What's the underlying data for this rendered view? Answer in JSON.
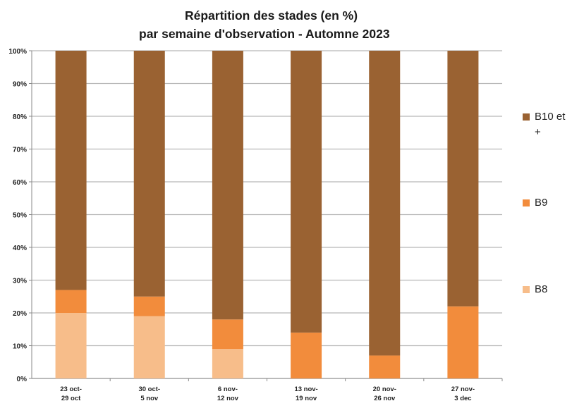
{
  "chart_data": {
    "type": "bar",
    "stacked": true,
    "title": "Répartition des stades (en %)",
    "subtitle": "par semaine d'observation - Automne 2023",
    "categories": [
      [
        "23 oct-",
        "29 oct"
      ],
      [
        "30 oct-",
        "5 nov"
      ],
      [
        "6 nov-",
        "12 nov"
      ],
      [
        "13 nov-",
        "19 nov"
      ],
      [
        "20 nov-",
        "26 nov"
      ],
      [
        "27 nov-",
        "3 dec"
      ]
    ],
    "series": [
      {
        "name": "B8",
        "color": "#f7bd8a",
        "values": [
          20,
          19,
          9,
          0,
          0,
          0
        ]
      },
      {
        "name": "B9",
        "color": "#f28c3c",
        "values": [
          7,
          6,
          9,
          14,
          7,
          22
        ]
      },
      {
        "name": "B10 et +",
        "color": "#9a6232",
        "values": [
          73,
          75,
          82,
          86,
          93,
          78
        ]
      }
    ],
    "y_ticks": [
      "0%",
      "10%",
      "20%",
      "30%",
      "40%",
      "50%",
      "60%",
      "70%",
      "80%",
      "90%",
      "100%"
    ],
    "ylim": [
      0,
      100
    ],
    "grid": true,
    "legend_position": "right",
    "legend_lines": {
      "B10 et +": [
        "B10 et",
        "+"
      ],
      "B9": [
        "B9"
      ],
      "B8": [
        "B8"
      ]
    }
  }
}
